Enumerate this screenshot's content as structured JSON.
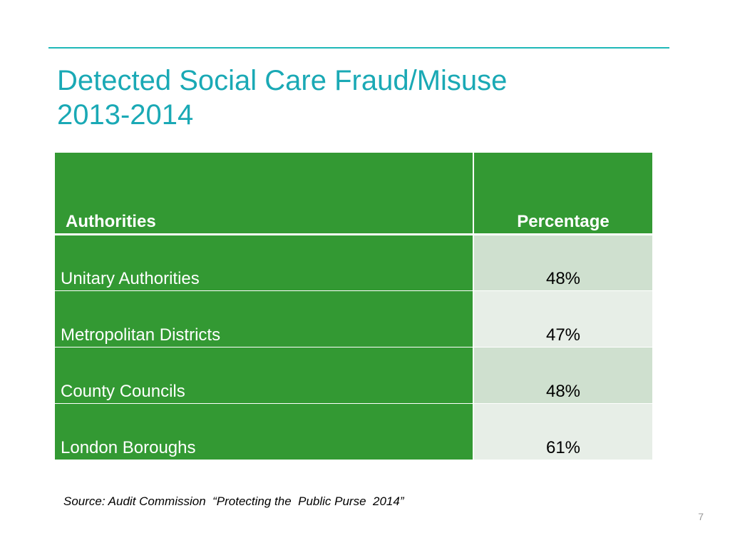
{
  "slide": {
    "title_line1": "Detected Social Care Fraud/Misuse",
    "title_line2": "2013-2014",
    "source": "Source: Audit Commission  “Protecting the  Public Purse  2014”",
    "page_number": "7"
  },
  "table": {
    "headers": {
      "authorities": "Authorities",
      "percentage": "Percentage"
    },
    "rows": [
      {
        "authority": "Unitary Authorities",
        "percentage": "48%"
      },
      {
        "authority": "Metropolitan Districts",
        "percentage": "47%"
      },
      {
        "authority": "County Councils",
        "percentage": "48%"
      },
      {
        "authority": "London Boroughs",
        "percentage": "61%"
      }
    ]
  },
  "colors": {
    "accent_teal": "#1aa9b5",
    "header_green": "#339933",
    "row_shade_dark": "#cfe0cf",
    "row_shade_light": "#e7eee7"
  }
}
